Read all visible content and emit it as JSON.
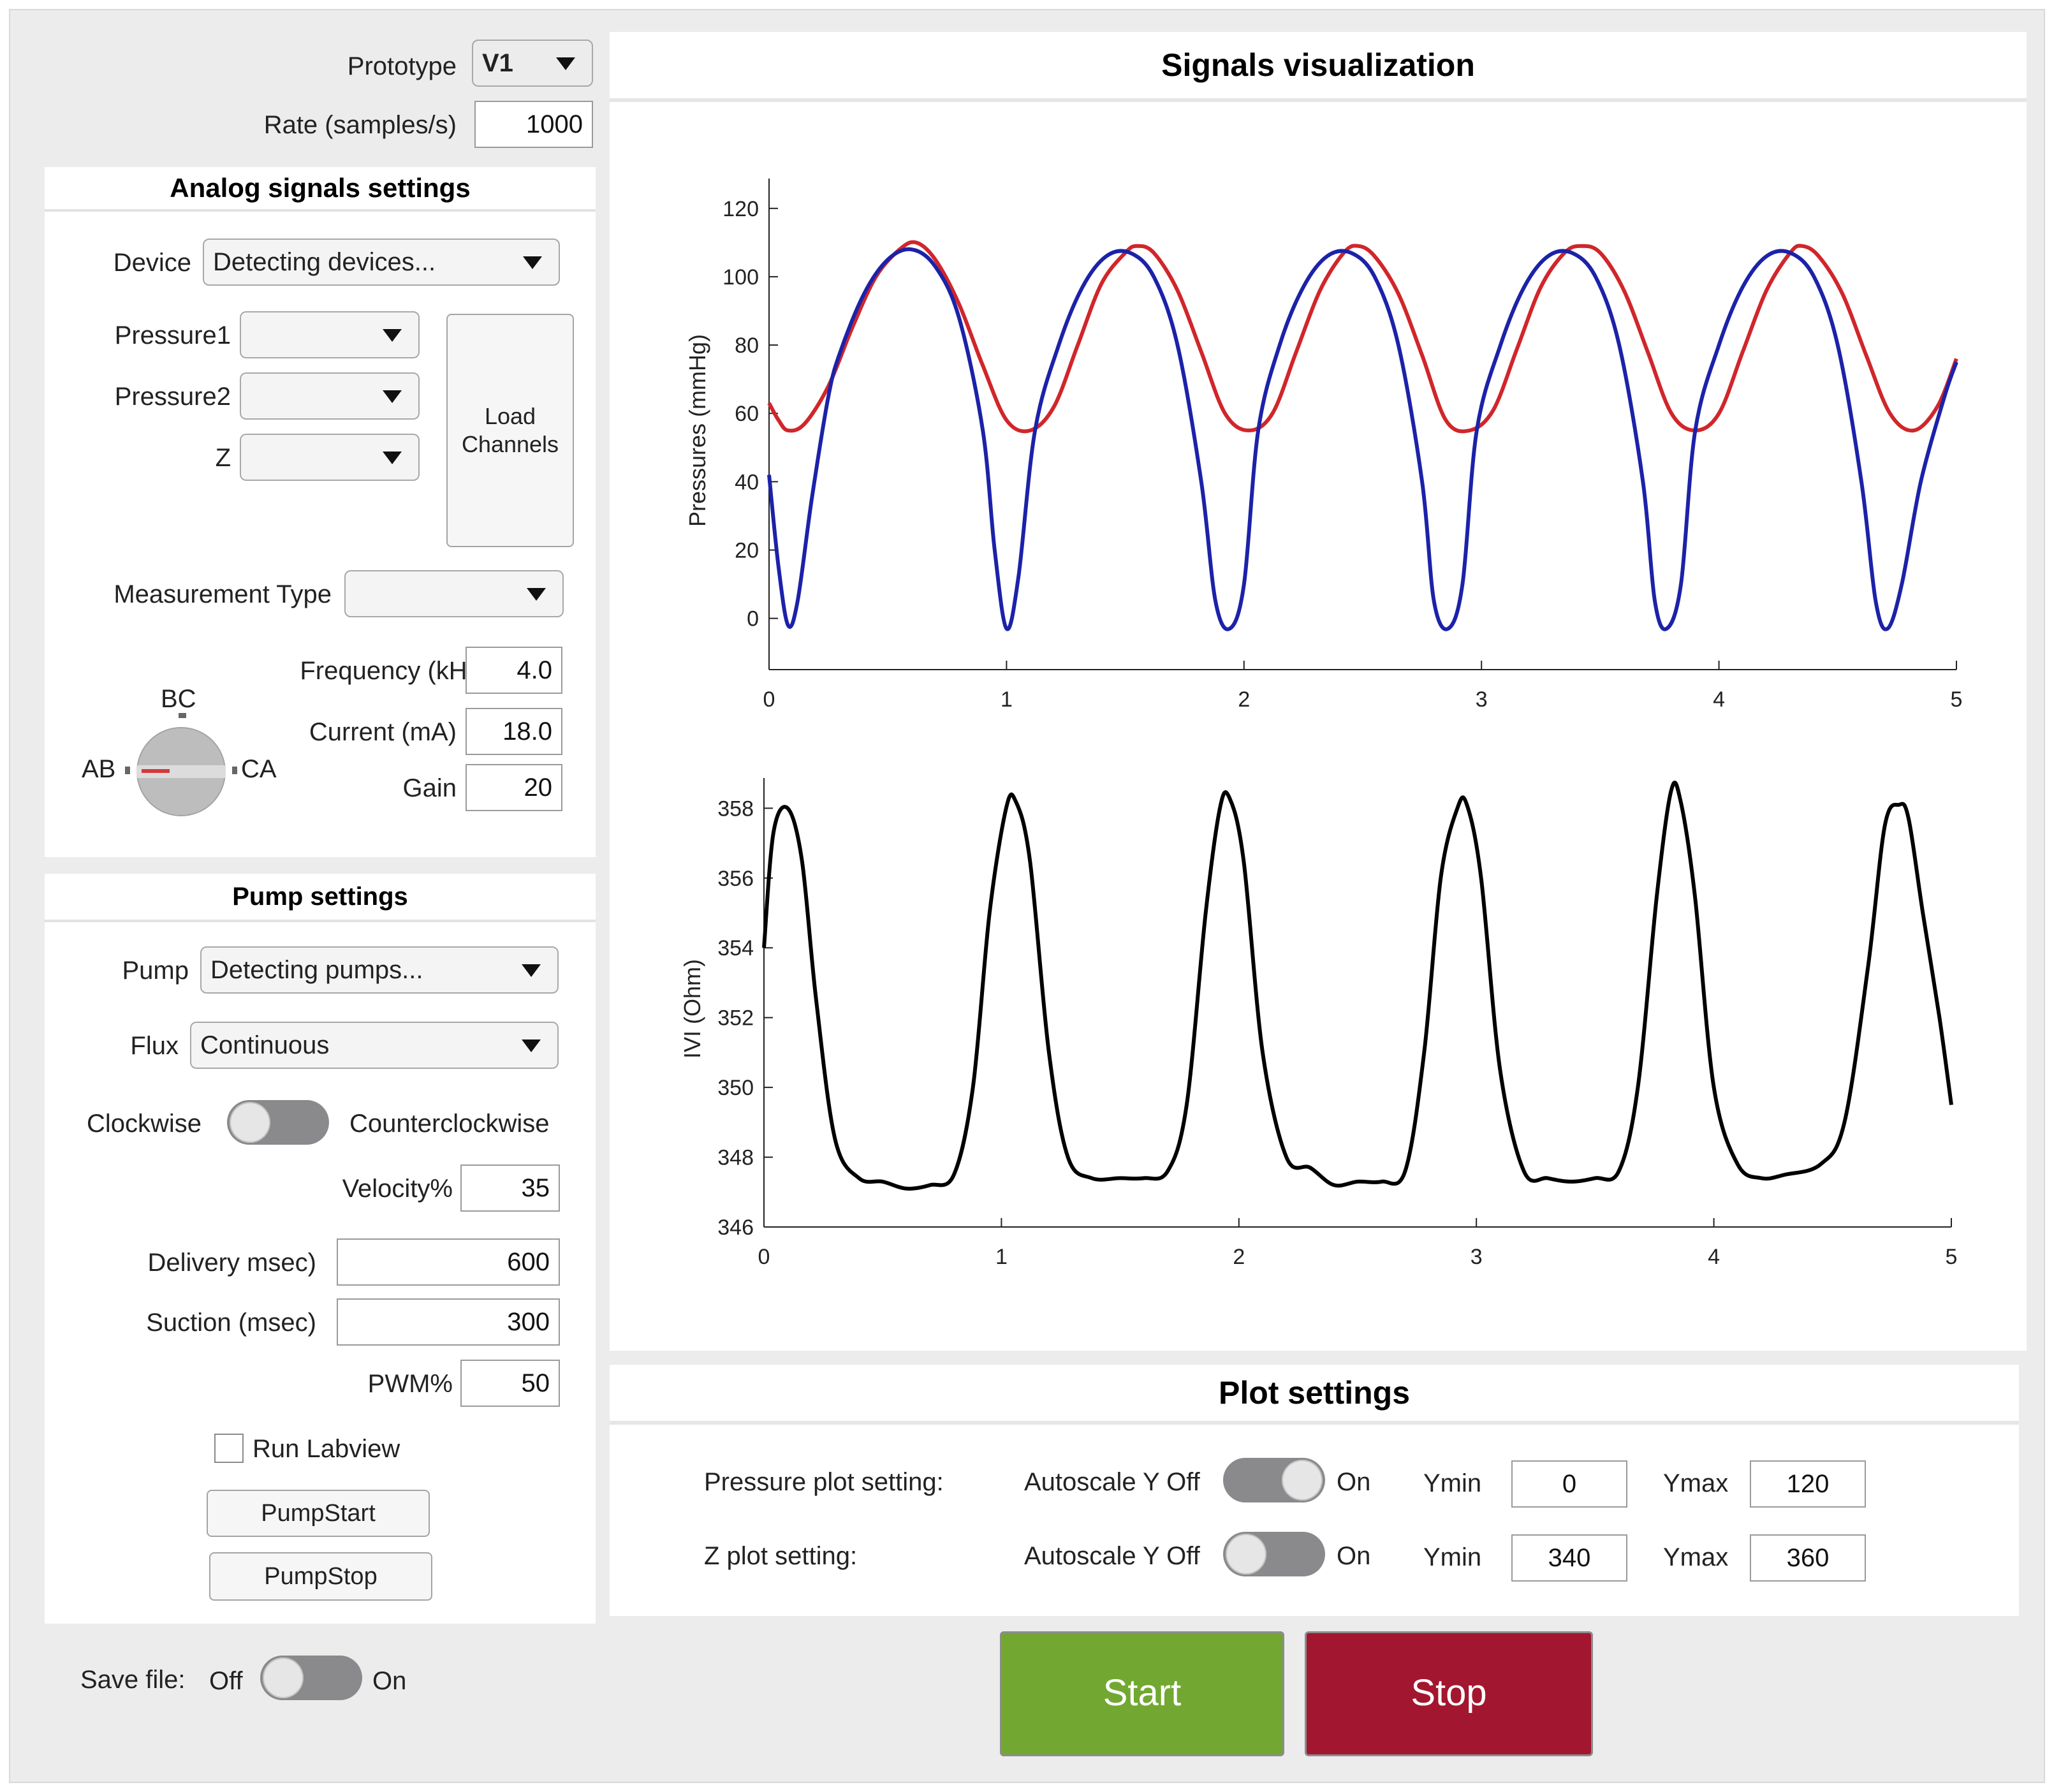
{
  "header": {
    "prototype_label": "Prototype",
    "prototype_value": "V1",
    "rate_label": "Rate (samples/s)",
    "rate_value": "1000"
  },
  "analog": {
    "title": "Analog signals settings",
    "device_label": "Device",
    "device_value": "Detecting devices...",
    "pressure1_label": "Pressure1",
    "pressure2_label": "Pressure2",
    "z_label": "Z",
    "load_channels_label": "Load\nChannels",
    "measurement_type_label": "Measurement Type",
    "knob_labels": {
      "top": "BC",
      "left": "AB",
      "right": "CA"
    },
    "frequency_label": "Frequency (kHz)",
    "frequency_value": "4.0",
    "current_label": "Current (mA)",
    "current_value": "18.0",
    "gain_label": "Gain",
    "gain_value": "20"
  },
  "pump": {
    "title": "Pump settings",
    "pump_label": "Pump",
    "pump_value": "Detecting pumps...",
    "flux_label": "Flux",
    "flux_value": "Continuous",
    "direction_left": "Clockwise",
    "direction_right": "Counterclockwise",
    "velocity_label": "Velocity%",
    "velocity_value": "35",
    "delivery_label": "Delivery msec)",
    "delivery_value": "600",
    "suction_label": "Suction (msec)",
    "suction_value": "300",
    "pwm_label": "PWM%",
    "pwm_value": "50",
    "run_labview_label": "Run Labview",
    "run_labview_checked": false,
    "start_label": "PumpStart",
    "stop_label": "PumpStop"
  },
  "save": {
    "label": "Save file:",
    "off": "Off",
    "on": "On"
  },
  "viz": {
    "title": "Signals visualization"
  },
  "plot_settings": {
    "title": "Plot settings",
    "pressure_label": "Pressure plot setting:",
    "z_label": "Z plot setting:",
    "autoscale_label": "Autoscale Y Off",
    "on_label": "On",
    "ymin_label": "Ymin",
    "ymax_label": "Ymax",
    "pressure_ymin": "0",
    "pressure_ymax": "120",
    "z_ymin": "340",
    "z_ymax": "360"
  },
  "actions": {
    "start_label": "Start",
    "stop_label": "Stop",
    "start_color": "#72a832",
    "stop_color": "#a31630"
  },
  "chart_data": [
    {
      "type": "line",
      "title": "",
      "xlabel": "",
      "ylabel": "Pressures (mmHg)",
      "xlim": [
        0,
        5
      ],
      "ylim": [
        -15,
        125
      ],
      "x_ticks": [
        0,
        1,
        2,
        3,
        4,
        5
      ],
      "y_ticks": [
        0,
        20,
        40,
        60,
        80,
        100,
        120
      ],
      "grid": false,
      "series": [
        {
          "color": "#d0262b",
          "x": [
            0,
            0.04,
            0.08,
            0.15,
            0.25,
            0.35,
            0.45,
            0.55,
            0.62,
            0.7,
            0.8,
            0.9,
            1.0,
            1.1,
            1.2,
            1.3,
            1.4,
            1.5,
            1.55,
            1.62,
            1.72,
            1.82,
            1.92,
            2.02,
            2.12,
            2.22,
            2.32,
            2.42,
            2.48,
            2.55,
            2.65,
            2.75,
            2.85,
            2.95,
            3.05,
            3.15,
            3.25,
            3.35,
            3.42,
            3.5,
            3.6,
            3.7,
            3.8,
            3.9,
            4.0,
            4.1,
            4.2,
            4.3,
            4.35,
            4.42,
            4.52,
            4.62,
            4.72,
            4.82,
            4.92,
            5.0
          ],
          "y": [
            63,
            58,
            55,
            57,
            68,
            85,
            100,
            108,
            110,
            105,
            92,
            74,
            58,
            55,
            62,
            80,
            98,
            107,
            109,
            107,
            96,
            78,
            60,
            55,
            60,
            78,
            96,
            107,
            109,
            106,
            95,
            77,
            58,
            55,
            61,
            79,
            97,
            107,
            109,
            107,
            96,
            78,
            60,
            55,
            60,
            78,
            96,
            107,
            109,
            106,
            95,
            77,
            60,
            55,
            62,
            76
          ]
        },
        {
          "color": "#1c22a8",
          "x": [
            0,
            0.04,
            0.08,
            0.12,
            0.18,
            0.25,
            0.3,
            0.4,
            0.5,
            0.6,
            0.7,
            0.8,
            0.9,
            0.95,
            1.0,
            1.05,
            1.12,
            1.22,
            1.32,
            1.42,
            1.52,
            1.62,
            1.72,
            1.82,
            1.88,
            1.94,
            2.0,
            2.06,
            2.15,
            2.25,
            2.35,
            2.45,
            2.55,
            2.65,
            2.75,
            2.8,
            2.86,
            2.92,
            2.98,
            3.08,
            3.18,
            3.28,
            3.38,
            3.48,
            3.58,
            3.68,
            3.73,
            3.78,
            3.84,
            3.9,
            4.0,
            4.1,
            4.2,
            4.3,
            4.4,
            4.5,
            4.6,
            4.66,
            4.71,
            4.77,
            4.85,
            4.95,
            5.0
          ],
          "y": [
            42,
            15,
            -2,
            5,
            35,
            65,
            78,
            95,
            105,
            108,
            103,
            88,
            55,
            20,
            -3,
            12,
            55,
            80,
            97,
            106,
            107,
            100,
            80,
            40,
            5,
            -3,
            10,
            55,
            80,
            97,
            106,
            107,
            100,
            80,
            40,
            5,
            -3,
            10,
            55,
            80,
            97,
            106,
            107,
            100,
            80,
            40,
            5,
            -3,
            10,
            55,
            80,
            97,
            106,
            107,
            100,
            80,
            40,
            5,
            -3,
            10,
            40,
            65,
            75
          ]
        }
      ]
    },
    {
      "type": "line",
      "title": "",
      "xlabel": "",
      "ylabel": "IVI (Ohm)",
      "xlim": [
        0,
        5
      ],
      "ylim": [
        346,
        358.5
      ],
      "x_ticks": [
        0,
        1,
        2,
        3,
        4,
        5
      ],
      "y_ticks": [
        346,
        348,
        350,
        352,
        354,
        356,
        358
      ],
      "grid": false,
      "series": [
        {
          "color": "#000000",
          "x": [
            0,
            0.04,
            0.1,
            0.16,
            0.22,
            0.3,
            0.4,
            0.5,
            0.6,
            0.7,
            0.8,
            0.88,
            0.95,
            1.02,
            1.06,
            1.12,
            1.2,
            1.28,
            1.38,
            1.5,
            1.6,
            1.7,
            1.78,
            1.86,
            1.92,
            1.96,
            2.02,
            2.1,
            2.2,
            2.3,
            2.4,
            2.5,
            2.6,
            2.7,
            2.78,
            2.85,
            2.92,
            2.96,
            3.02,
            3.1,
            3.2,
            3.3,
            3.4,
            3.5,
            3.6,
            3.68,
            3.76,
            3.82,
            3.86,
            3.92,
            4.0,
            4.1,
            4.2,
            4.3,
            4.45,
            4.55,
            4.65,
            4.72,
            4.78,
            4.82,
            4.88,
            4.95,
            5.0
          ],
          "y": [
            354,
            357.3,
            358,
            356.5,
            352.5,
            348.5,
            347.4,
            347.3,
            347.1,
            347.2,
            347.5,
            350,
            355,
            358,
            358.2,
            356.5,
            351,
            348,
            347.4,
            347.4,
            347.4,
            347.6,
            349.5,
            355,
            358,
            358.3,
            356.5,
            351,
            348,
            347.7,
            347.2,
            347.3,
            347.3,
            347.6,
            351,
            356,
            358,
            358.1,
            356,
            350.5,
            347.6,
            347.4,
            347.3,
            347.4,
            347.6,
            350,
            355.5,
            358.5,
            358.2,
            355.5,
            350,
            347.8,
            347.4,
            347.5,
            347.8,
            349,
            353.5,
            357.5,
            358.1,
            357.7,
            355,
            352,
            349.5
          ]
        }
      ]
    }
  ]
}
